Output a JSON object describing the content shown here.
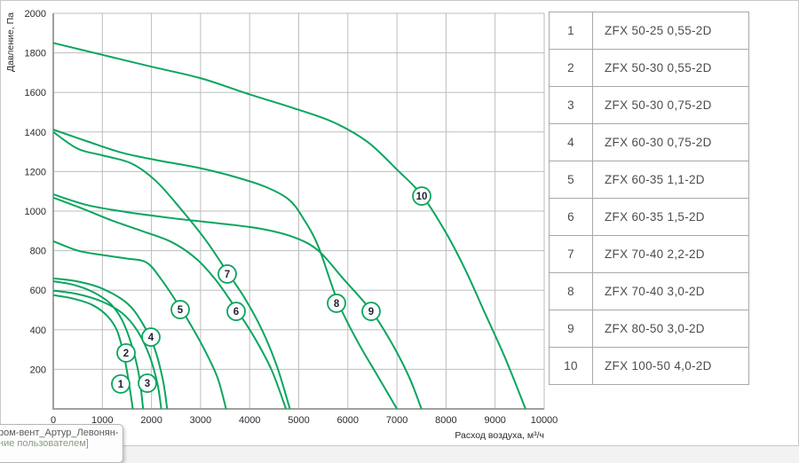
{
  "chart_data": {
    "type": "line",
    "title": "",
    "xlabel": "Расход воздуха, м³/ч",
    "ylabel": "Давление, Па",
    "xlim": [
      0,
      10000
    ],
    "ylim": [
      0,
      2000
    ],
    "x_ticks": [
      0,
      1000,
      2000,
      3000,
      4000,
      5000,
      6000,
      7000,
      8000,
      9000,
      10000
    ],
    "y_ticks": [
      200,
      400,
      600,
      800,
      1000,
      1200,
      1400,
      1600,
      1800,
      2000
    ],
    "grid": true,
    "grid_color": "#bdbdbd",
    "axis_color": "#a0a0a0",
    "line_color": "#0aa55e",
    "label_circle_fill": "#ffffff",
    "label_text_color": "#1d2230",
    "series": [
      {
        "name": "1",
        "label_at": [
          1374,
          126
        ],
        "points": [
          [
            0,
            575
          ],
          [
            400,
            558
          ],
          [
            800,
            525
          ],
          [
            1100,
            470
          ],
          [
            1300,
            395
          ],
          [
            1430,
            280
          ],
          [
            1530,
            150
          ],
          [
            1620,
            0
          ]
        ]
      },
      {
        "name": "2",
        "label_at": [
          1483,
          283
        ],
        "points": [
          [
            0,
            645
          ],
          [
            400,
            628
          ],
          [
            800,
            592
          ],
          [
            1150,
            535
          ],
          [
            1400,
            450
          ],
          [
            1600,
            320
          ],
          [
            1750,
            165
          ],
          [
            1830,
            0
          ]
        ]
      },
      {
        "name": "3",
        "label_at": [
          1917,
          130
        ],
        "points": [
          [
            0,
            598
          ],
          [
            500,
            580
          ],
          [
            1000,
            542
          ],
          [
            1400,
            485
          ],
          [
            1700,
            400
          ],
          [
            1950,
            275
          ],
          [
            2120,
            130
          ],
          [
            2200,
            0
          ]
        ]
      },
      {
        "name": "4",
        "label_at": [
          1989,
          363
        ],
        "points": [
          [
            0,
            660
          ],
          [
            500,
            644
          ],
          [
            1000,
            608
          ],
          [
            1500,
            535
          ],
          [
            1800,
            440
          ],
          [
            2050,
            315
          ],
          [
            2230,
            150
          ],
          [
            2320,
            0
          ]
        ]
      },
      {
        "name": "5",
        "label_at": [
          2586,
          502
        ],
        "points": [
          [
            0,
            848
          ],
          [
            500,
            800
          ],
          [
            1000,
            778
          ],
          [
            1500,
            760
          ],
          [
            1900,
            740
          ],
          [
            2200,
            655
          ],
          [
            2500,
            545
          ],
          [
            2800,
            425
          ],
          [
            3100,
            290
          ],
          [
            3350,
            155
          ],
          [
            3520,
            0
          ]
        ]
      },
      {
        "name": "6",
        "label_at": [
          3725,
          493
        ],
        "points": [
          [
            0,
            1068
          ],
          [
            600,
            1012
          ],
          [
            1200,
            952
          ],
          [
            1800,
            900
          ],
          [
            2400,
            845
          ],
          [
            2900,
            762
          ],
          [
            3300,
            655
          ],
          [
            3700,
            515
          ],
          [
            4100,
            360
          ],
          [
            4450,
            195
          ],
          [
            4740,
            0
          ]
        ]
      },
      {
        "name": "7",
        "label_at": [
          3544,
          682
        ],
        "points": [
          [
            0,
            1400
          ],
          [
            500,
            1315
          ],
          [
            1000,
            1282
          ],
          [
            1600,
            1240
          ],
          [
            2100,
            1150
          ],
          [
            2600,
            1010
          ],
          [
            3100,
            855
          ],
          [
            3550,
            690
          ],
          [
            3900,
            560
          ],
          [
            4250,
            400
          ],
          [
            4550,
            220
          ],
          [
            4820,
            0
          ]
        ]
      },
      {
        "name": "8",
        "label_at": [
          5769,
          534
        ],
        "points": [
          [
            0,
            1412
          ],
          [
            700,
            1352
          ],
          [
            1400,
            1295
          ],
          [
            2100,
            1258
          ],
          [
            2900,
            1222
          ],
          [
            3600,
            1180
          ],
          [
            4300,
            1125
          ],
          [
            4800,
            1058
          ],
          [
            5100,
            960
          ],
          [
            5400,
            820
          ],
          [
            5800,
            540
          ],
          [
            6200,
            340
          ],
          [
            6600,
            170
          ],
          [
            7000,
            0
          ]
        ]
      },
      {
        "name": "9",
        "label_at": [
          6474,
          493
        ],
        "points": [
          [
            0,
            1085
          ],
          [
            700,
            1030
          ],
          [
            1500,
            995
          ],
          [
            2400,
            965
          ],
          [
            3300,
            940
          ],
          [
            4200,
            912
          ],
          [
            4900,
            868
          ],
          [
            5400,
            800
          ],
          [
            5900,
            660
          ],
          [
            6480,
            495
          ],
          [
            6900,
            330
          ],
          [
            7250,
            160
          ],
          [
            7500,
            0
          ]
        ]
      },
      {
        "name": "10",
        "label_at": [
          7505,
          1076
        ],
        "points": [
          [
            0,
            1850
          ],
          [
            1000,
            1790
          ],
          [
            2000,
            1730
          ],
          [
            3000,
            1672
          ],
          [
            4000,
            1590
          ],
          [
            4900,
            1520
          ],
          [
            5700,
            1450
          ],
          [
            6400,
            1350
          ],
          [
            7000,
            1210
          ],
          [
            7510,
            1080
          ],
          [
            8000,
            890
          ],
          [
            8400,
            700
          ],
          [
            8800,
            480
          ],
          [
            9200,
            260
          ],
          [
            9620,
            0
          ]
        ]
      }
    ]
  },
  "table": {
    "rows": [
      {
        "num": "1",
        "model": "ZFX 50-25 0,55-2D"
      },
      {
        "num": "2",
        "model": "ZFX 50-30 0,55-2D"
      },
      {
        "num": "3",
        "model": "ZFX 50-30 0,75-2D"
      },
      {
        "num": "4",
        "model": "ZFX 60-30 0,75-2D"
      },
      {
        "num": "5",
        "model": "ZFX 60-35 1,1-2D"
      },
      {
        "num": "6",
        "model": "ZFX 60-35 1,5-2D"
      },
      {
        "num": "7",
        "model": "ZFX 70-40 2,2-2D"
      },
      {
        "num": "8",
        "model": "ZFX 70-40 3,0-2D"
      },
      {
        "num": "9",
        "model": "ZFX 80-50 3,0-2D"
      },
      {
        "num": "10",
        "model": "ZFX 100-50 4,0-2D"
      }
    ]
  },
  "tooltip": {
    "line1": "ром-вент_Артур_Левонян-",
    "line2": "ние пользователем]"
  }
}
